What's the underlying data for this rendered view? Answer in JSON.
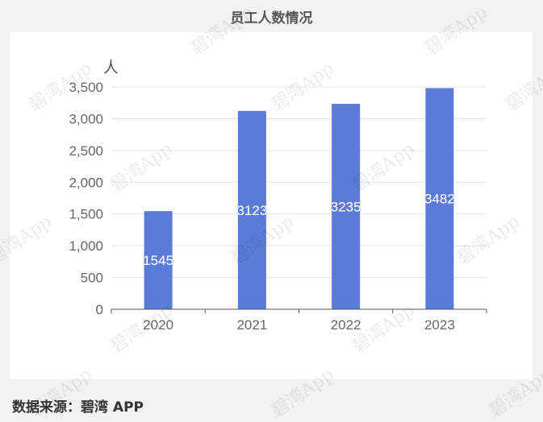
{
  "chart_data": {
    "type": "bar",
    "title": "员工人数情况",
    "ylabel": "人",
    "categories": [
      "2020",
      "2021",
      "2022",
      "2023"
    ],
    "values": [
      1545,
      3123,
      3235,
      3482
    ],
    "data_labels": [
      "1545",
      "3123",
      "3235",
      "3482"
    ],
    "ylim": [
      0,
      3500
    ],
    "yticks": [
      0,
      500,
      1000,
      1500,
      2000,
      2500,
      3000,
      3500
    ],
    "ytick_labels": [
      "0",
      "500",
      "1,000",
      "1,500",
      "2,000",
      "2,500",
      "3,000",
      "3,500"
    ],
    "grid": true,
    "bar_color": "#5b7bd8"
  },
  "source": "数据来源：碧湾 APP",
  "watermark_text": "碧湾App"
}
